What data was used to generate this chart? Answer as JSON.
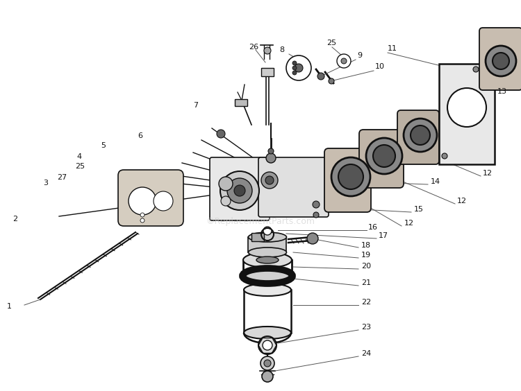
{
  "bg_color": "#ffffff",
  "fig_width": 7.5,
  "fig_height": 5.64,
  "watermark": "©ReplacementParts.com",
  "line_color": "#111111",
  "label_color": "#111111",
  "fs": 8.0
}
